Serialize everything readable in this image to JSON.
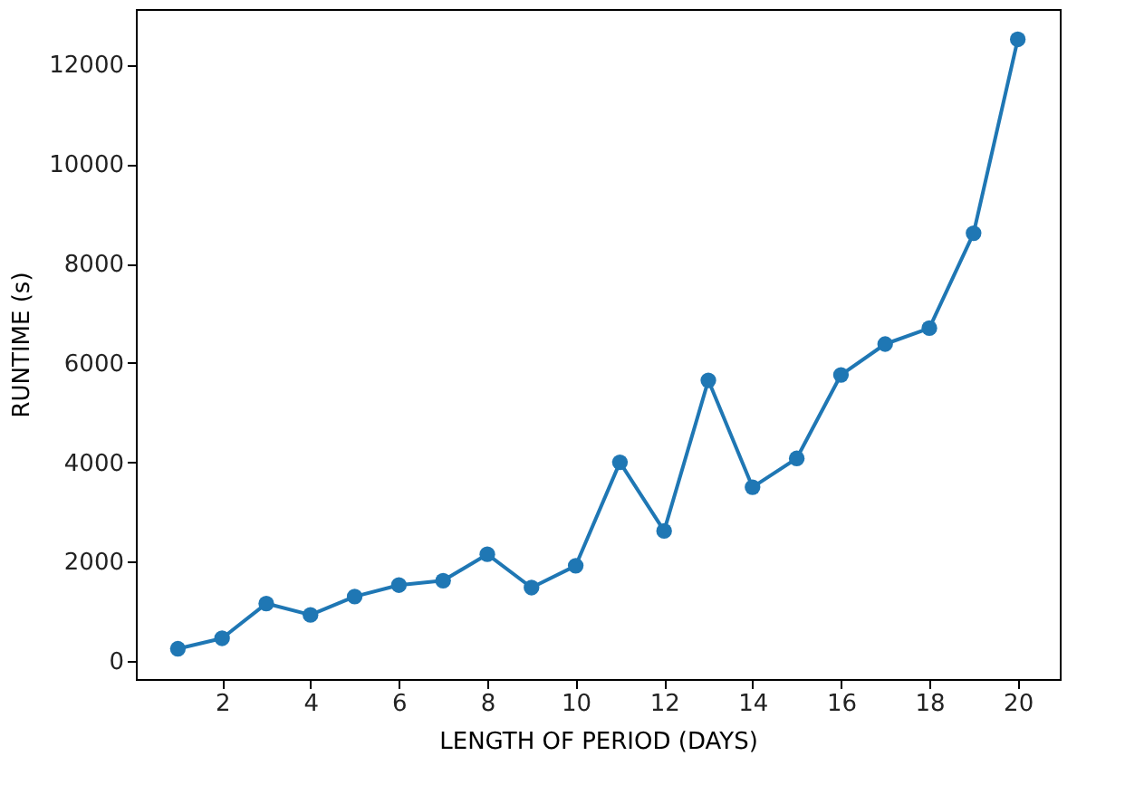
{
  "chart_data": {
    "type": "line",
    "xlabel": "LENGTH OF PERIOD (DAYS)",
    "ylabel": "RUNTIME (s)",
    "x": [
      1,
      2,
      3,
      4,
      5,
      6,
      7,
      8,
      9,
      10,
      11,
      12,
      13,
      14,
      15,
      16,
      17,
      18,
      19,
      20
    ],
    "series": [
      {
        "color": "#1f77b4",
        "values": [
          250,
          460,
          1160,
          930,
          1300,
          1530,
          1620,
          2150,
          1480,
          1920,
          4000,
          2620,
          5650,
          3500,
          4080,
          5760,
          6380,
          6700,
          8610,
          12510
        ]
      }
    ],
    "xlim": [
      0.05,
      20.95
    ],
    "ylim": [
      -360,
      13120
    ],
    "xticks": [
      2,
      4,
      6,
      8,
      10,
      12,
      14,
      16,
      18,
      20
    ],
    "yticks": [
      0,
      2000,
      4000,
      6000,
      8000,
      10000,
      12000
    ],
    "marker": "circle",
    "line_style": "solid",
    "grid": false
  }
}
